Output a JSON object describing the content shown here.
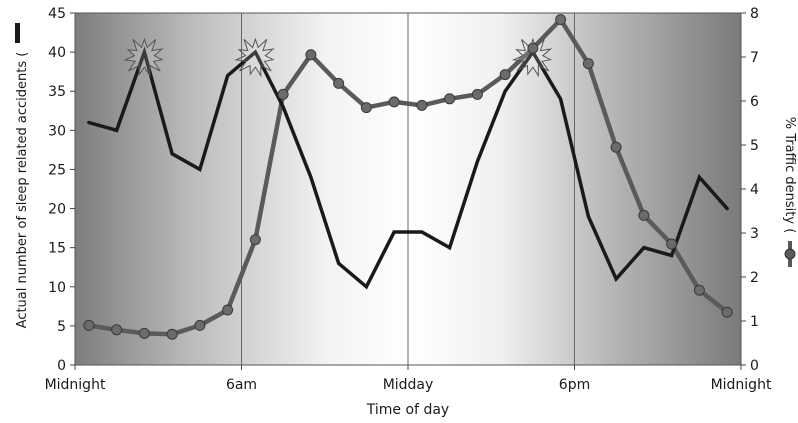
{
  "chart_data": {
    "type": "line",
    "xlabel": "Time of day",
    "ylabel_left": "Actual number of sleep related accidents (",
    "ylabel_right": "% Traffic density (",
    "x_ticks": [
      "Midnight",
      "6am",
      "Midday",
      "6pm",
      "Midnight"
    ],
    "x_range": [
      0,
      24
    ],
    "y_left_range": [
      0,
      45
    ],
    "y_left_ticks": [
      0,
      5,
      10,
      15,
      20,
      25,
      30,
      35,
      40,
      45
    ],
    "y_right_range": [
      0,
      8
    ],
    "y_right_ticks": [
      0,
      1,
      2,
      3,
      4,
      5,
      6,
      7,
      8
    ],
    "grid_vertical_at": [
      6,
      12,
      18
    ],
    "background": "horizontal gradient: dark at night, light at midday",
    "series": [
      {
        "axis": "left",
        "style": "black thick line",
        "color": "#1a1a1a",
        "x": [
          0.5,
          1.5,
          2.5,
          3.5,
          4.5,
          5.5,
          6.5,
          7.5,
          8.5,
          9.5,
          10.5,
          11.5,
          12.5,
          13.5,
          14.5,
          15.5,
          16.5,
          17.5,
          18.5,
          19.5,
          20.5,
          21.5,
          22.5,
          23.5
        ],
        "values": [
          31,
          30,
          40,
          27,
          25,
          37,
          40,
          33,
          24,
          13,
          10,
          17,
          17,
          15,
          26,
          35,
          40,
          34,
          19,
          11,
          15,
          14,
          24,
          20
        ]
      },
      {
        "axis": "right",
        "style": "grey line with circle markers",
        "color": "#5a5a5a",
        "x": [
          0.5,
          1.5,
          2.5,
          3.5,
          4.5,
          5.5,
          6.5,
          7.5,
          8.5,
          9.5,
          10.5,
          11.5,
          12.5,
          13.5,
          14.5,
          15.5,
          16.5,
          17.5,
          18.5,
          19.5,
          20.5,
          21.5,
          22.5,
          23.5
        ],
        "values": [
          0.9,
          0.8,
          0.72,
          0.7,
          0.9,
          1.25,
          2.85,
          6.15,
          7.05,
          6.4,
          5.85,
          5.98,
          5.9,
          6.05,
          6.15,
          6.6,
          7.2,
          7.85,
          6.85,
          4.95,
          3.4,
          2.75,
          1.7,
          1.2
        ]
      }
    ],
    "annotations": [
      {
        "type": "starburst",
        "series": 0,
        "at_x": 2.5
      },
      {
        "type": "starburst",
        "series": 0,
        "at_x": 6.5
      },
      {
        "type": "starburst",
        "series": 0,
        "at_x": 16.5
      }
    ]
  }
}
